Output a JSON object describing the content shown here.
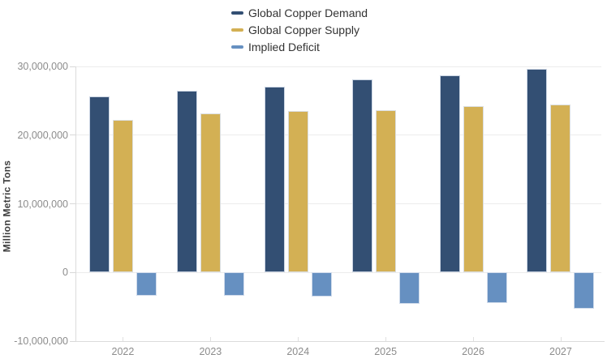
{
  "chart_data": {
    "type": "bar",
    "title": "",
    "categories": [
      "2022",
      "2023",
      "2024",
      "2025",
      "2026",
      "2027"
    ],
    "series": [
      {
        "name": "Global Copper Demand",
        "color": "#334F73",
        "values": [
          25600000,
          26500000,
          27100000,
          28100000,
          28700000,
          29700000
        ]
      },
      {
        "name": "Global Copper Supply",
        "color": "#D3B054",
        "values": [
          22200000,
          23100000,
          23500000,
          23600000,
          24200000,
          24400000
        ]
      },
      {
        "name": "Implied Deficit",
        "color": "#6690C1",
        "values": [
          -3400000,
          -3400000,
          -3500000,
          -4600000,
          -4400000,
          -5300000
        ]
      }
    ],
    "xlabel": "",
    "ylabel": "Million Metric Tons",
    "ylim": [
      -10000000,
      30000000
    ],
    "y_ticks": [
      {
        "value": 30000000,
        "label": "30,000,000"
      },
      {
        "value": 20000000,
        "label": "20,000,000"
      },
      {
        "value": 10000000,
        "label": "10,000,000"
      },
      {
        "value": 0,
        "label": "0"
      },
      {
        "value": -10000000,
        "label": "-10,000,000"
      }
    ],
    "grid": true,
    "legend_position": "top-center"
  },
  "colors": {
    "background": "#FFFFFF",
    "gridline": "#ECECEC",
    "axis_line": "#DBDBDB",
    "tick_label": "#8C8C8C",
    "legend_text": "#333333",
    "axis_title": "#3F3F3F"
  }
}
